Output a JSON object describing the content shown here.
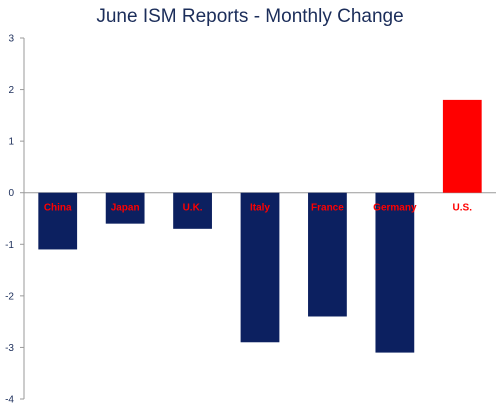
{
  "chart_data": {
    "type": "bar",
    "title": "June ISM Reports - Monthly Change",
    "categories": [
      "China",
      "Japan",
      "U.K.",
      "Italy",
      "France",
      "Germany",
      "U.S."
    ],
    "values": [
      -1.1,
      -0.6,
      -0.7,
      -2.9,
      -2.4,
      -3.1,
      1.8
    ],
    "ylim": [
      -4,
      3
    ],
    "yticks": [
      3,
      2,
      1,
      0,
      -1,
      -2,
      -3,
      -4
    ],
    "xlabel": "",
    "ylabel": "",
    "grid": false,
    "legend": "none",
    "colors": {
      "negative_bar": "#0c2060",
      "positive_bar": "#ff0000",
      "category_label": "#ff0000",
      "title": "#1b2d5a",
      "axis_text": "#1b2d5a",
      "axis_line": "#9a9a9a"
    }
  }
}
